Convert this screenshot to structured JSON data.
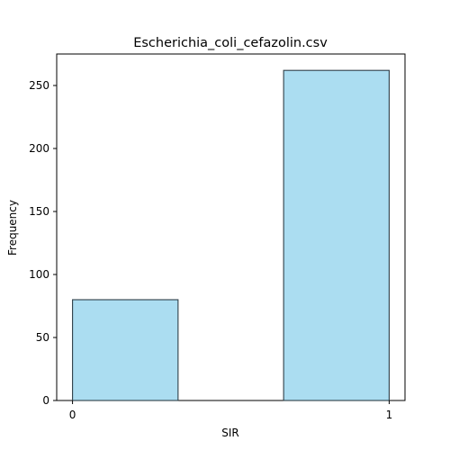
{
  "chart_data": {
    "type": "bar",
    "title": "Escherichia_coli_cefazolin.csv",
    "xlabel": "SIR",
    "ylabel": "Frequency",
    "bins": [
      {
        "start": 0,
        "end": 0.5,
        "value": 80
      },
      {
        "start": 0.5,
        "end": 1,
        "value": 0
      },
      {
        "start": 1,
        "end": 1.5,
        "value": 262
      }
    ],
    "xlim": [
      -0.05,
      1.05
    ],
    "ylim": [
      0,
      275
    ],
    "xticks": [
      0,
      1
    ],
    "yticks": [
      0,
      50,
      100,
      150,
      200,
      250
    ],
    "grid": false,
    "bar_color": "#87CEEB",
    "edge_color": "#2f3f48"
  }
}
